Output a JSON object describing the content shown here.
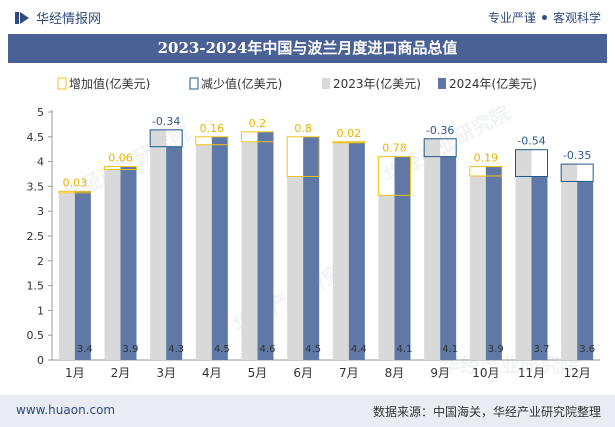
{
  "header": {
    "brand": "华经情报网",
    "tagline_1": "专业严谨",
    "tagline_2": "客观科学"
  },
  "title": "2023-2024年中国与波兰月度进口商品总值",
  "footer": {
    "website": "www.huaon.com",
    "source": "数据来源：中国海关，华经产业研究院整理"
  },
  "watermark": "华经产业研究院",
  "colors": {
    "c2023": "#d9d9d9",
    "c2024": "#5f78a6",
    "increase": "#f0c419",
    "decrease": "#1e5a8a",
    "title_bg": "#4a6196"
  },
  "chart_data": {
    "type": "bar",
    "categories": [
      "1月",
      "2月",
      "3月",
      "4月",
      "5月",
      "6月",
      "7月",
      "8月",
      "9月",
      "10月",
      "11月",
      "12月"
    ],
    "series": [
      {
        "name": "2023年(亿美元)",
        "values": [
          3.37,
          3.84,
          4.64,
          4.34,
          4.4,
          3.7,
          4.38,
          3.32,
          4.46,
          3.71,
          4.24,
          3.95
        ]
      },
      {
        "name": "2024年(亿美元)",
        "values": [
          3.4,
          3.9,
          4.3,
          4.5,
          4.6,
          4.5,
          4.4,
          4.1,
          4.1,
          3.9,
          3.7,
          3.6
        ]
      }
    ],
    "labels_2024": [
      "3.4",
      "3.9",
      "4.3",
      "4.5",
      "4.6",
      "4.5",
      "4.4",
      "4.1",
      "4.1",
      "3.9",
      "3.7",
      "3.6"
    ],
    "changes": [
      0.03,
      0.06,
      -0.34,
      0.16,
      0.2,
      0.8,
      0.02,
      0.78,
      -0.36,
      0.19,
      -0.54,
      -0.35
    ],
    "change_labels": [
      "0.03",
      "0.06",
      "-0.34",
      "0.16",
      "0.2",
      "0.8",
      "0.02",
      "0.78",
      "-0.36",
      "0.19",
      "-0.54",
      "-0.35"
    ],
    "legend": [
      "增加值(亿美元)",
      "减少值(亿美元)",
      "2023年(亿美元)",
      "2024年(亿美元)"
    ],
    "yticks": [
      "0",
      "0.5",
      "1",
      "1.5",
      "2",
      "2.5",
      "3",
      "3.5",
      "4",
      "4.5",
      "5"
    ],
    "ylim": [
      0,
      5
    ],
    "xlabel": "",
    "ylabel": ""
  }
}
